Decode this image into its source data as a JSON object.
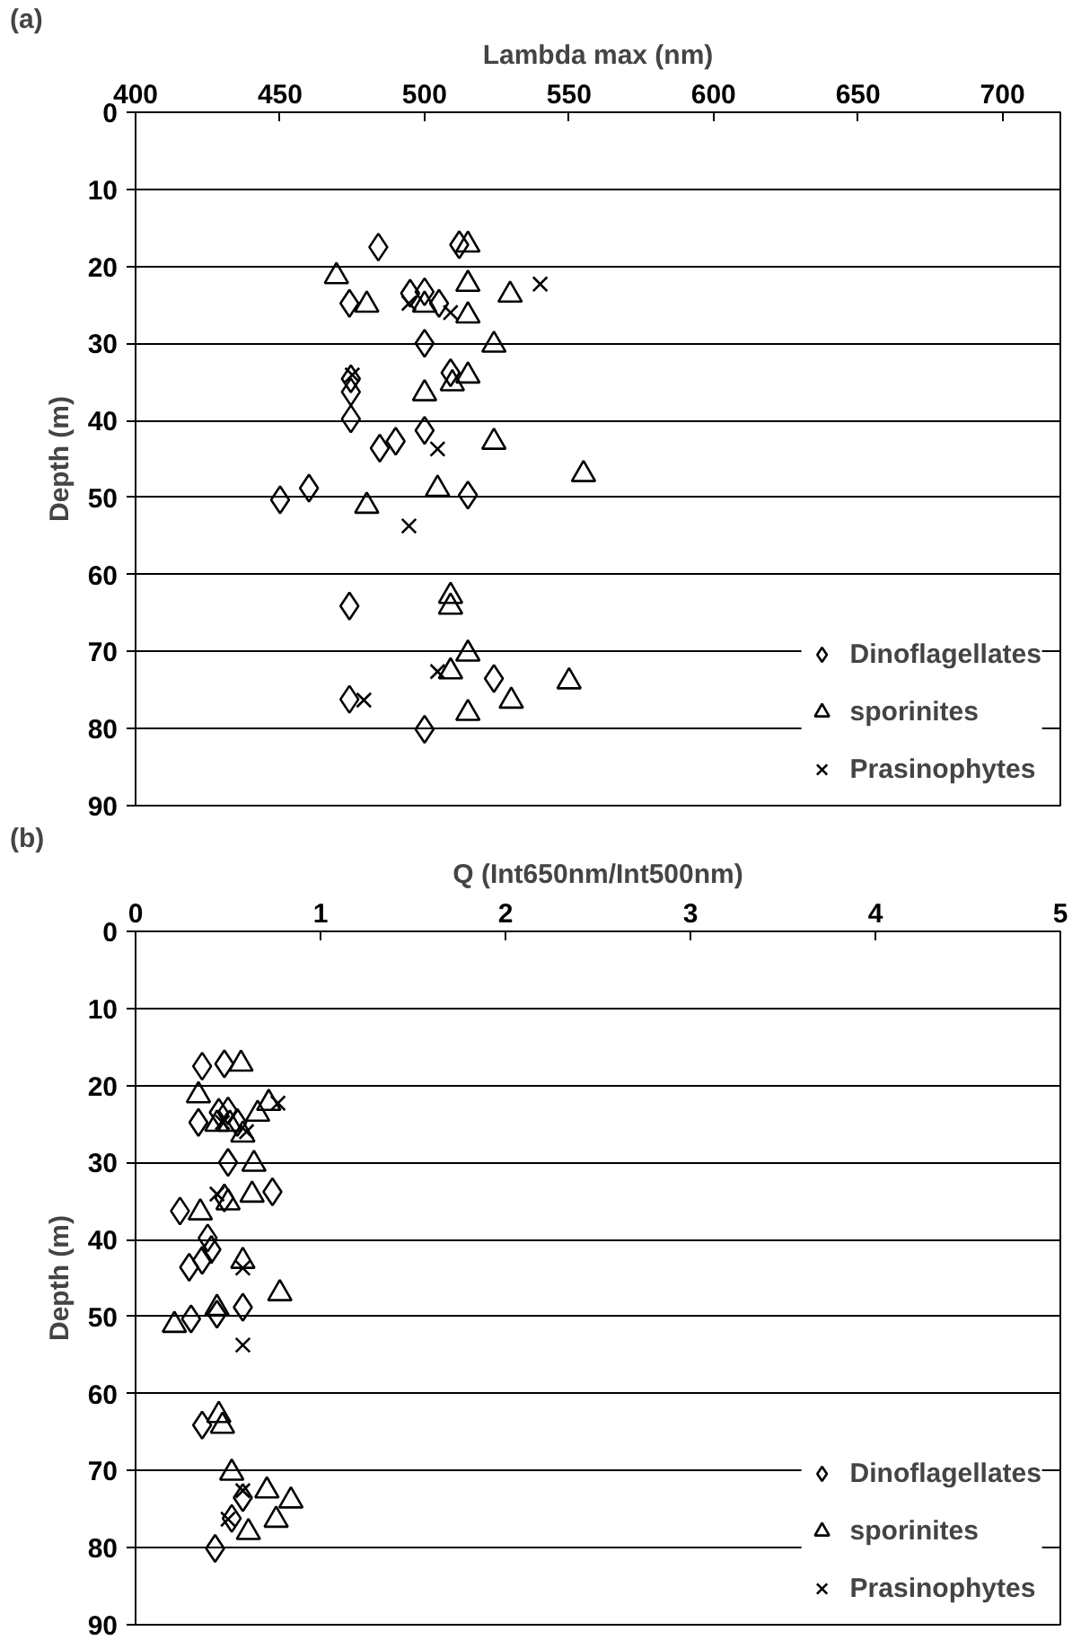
{
  "chart_data": [
    {
      "type": "scatter",
      "xlabel": "Lambda max (nm)",
      "ylabel": "Depth (m)",
      "annotations": [
        "(a)"
      ],
      "xlim": [
        400,
        720
      ],
      "xticks": [
        400,
        450,
        500,
        550,
        600,
        650,
        700
      ],
      "ylim": [
        90,
        0
      ],
      "yticks": [
        0,
        10,
        20,
        30,
        40,
        50,
        60,
        70,
        80,
        90
      ],
      "grid": "y",
      "legend": "bottom right",
      "series": [
        {
          "name": "Dinoflagellates",
          "color": "#000000",
          "marker": "diamond",
          "x": [
            484,
            512,
            474,
            495,
            500,
            505,
            500,
            509,
            474.5,
            474.5,
            474.5,
            500,
            490,
            484.5,
            460,
            450,
            515,
            474,
            524,
            474,
            500
          ],
          "values": [
            17.5,
            17.2,
            24.8,
            23.5,
            23.3,
            24.8,
            30,
            33.8,
            34.6,
            36.3,
            39.8,
            41.3,
            42.7,
            43.6,
            48.8,
            50.3,
            49.7,
            64.1,
            73.5,
            76.2,
            80.1
          ]
        },
        {
          "name": "sporinites",
          "color": "#000000",
          "marker": "triangle",
          "x": [
            515,
            469.5,
            515,
            529.6,
            480,
            500,
            515,
            524,
            515,
            509.6,
            500,
            524,
            555,
            504.5,
            480,
            509,
            509,
            515,
            509,
            550,
            530,
            515
          ],
          "values": [
            17.2,
            21.3,
            22.3,
            23.7,
            25,
            25,
            26.4,
            30.2,
            34.2,
            35.2,
            36.5,
            42.8,
            47,
            48.9,
            51.1,
            62.8,
            64.2,
            70.3,
            72.6,
            73.9,
            76.4,
            78
          ]
        },
        {
          "name": "Prasinophytes",
          "color": "#000000",
          "marker": "cross",
          "x": [
            540,
            494.6,
            509,
            475,
            504.5,
            494.6,
            504.5,
            479
          ],
          "values": [
            22.3,
            24.8,
            26,
            34.1,
            43.7,
            53.7,
            72.6,
            76.3
          ]
        }
      ]
    },
    {
      "type": "scatter",
      "xlabel": "Q (Int650nm/Int500nm)",
      "ylabel": "Depth (m)",
      "annotations": [
        "(b)"
      ],
      "xlim": [
        0,
        5
      ],
      "xticks": [
        0,
        1,
        2,
        3,
        4,
        5
      ],
      "ylim": [
        90,
        0
      ],
      "yticks": [
        0,
        10,
        20,
        30,
        40,
        50,
        60,
        70,
        80,
        90
      ],
      "grid": "y",
      "legend": "bottom right",
      "series": [
        {
          "name": "Dinoflagellates",
          "color": "#000000",
          "marker": "diamond",
          "x": [
            0.36,
            0.48,
            0.34,
            0.45,
            0.5,
            0.55,
            0.5,
            0.74,
            0.48,
            0.24,
            0.39,
            0.41,
            0.36,
            0.29,
            0.58,
            0.3,
            0.44,
            0.36,
            0.58,
            0.52,
            0.43
          ],
          "values": [
            17.5,
            17.2,
            24.8,
            23.5,
            23.3,
            24.8,
            30,
            33.8,
            34.6,
            36.3,
            39.8,
            41.3,
            42.7,
            43.6,
            48.8,
            50.3,
            49.7,
            64.1,
            73.5,
            76.2,
            80.1
          ]
        },
        {
          "name": "sporinites",
          "color": "#000000",
          "marker": "triangle",
          "x": [
            0.57,
            0.34,
            0.72,
            0.66,
            0.44,
            0.51,
            0.58,
            0.64,
            0.63,
            0.5,
            0.35,
            0.58,
            0.78,
            0.44,
            0.21,
            0.45,
            0.47,
            0.52,
            0.71,
            0.84,
            0.76,
            0.61
          ],
          "values": [
            17.2,
            21.3,
            22.3,
            23.7,
            25,
            25,
            26.4,
            30.2,
            34.2,
            35.2,
            36.5,
            42.8,
            47,
            48.9,
            51.1,
            62.8,
            64.2,
            70.3,
            72.6,
            73.9,
            76.4,
            78
          ]
        },
        {
          "name": "Prasinophytes",
          "color": "#000000",
          "marker": "cross",
          "x": [
            0.77,
            0.47,
            0.6,
            0.44,
            0.58,
            0.58,
            0.58,
            0.5
          ],
          "values": [
            22.3,
            24.8,
            26,
            34.1,
            43.7,
            53.7,
            72.6,
            76.3
          ]
        }
      ]
    }
  ]
}
